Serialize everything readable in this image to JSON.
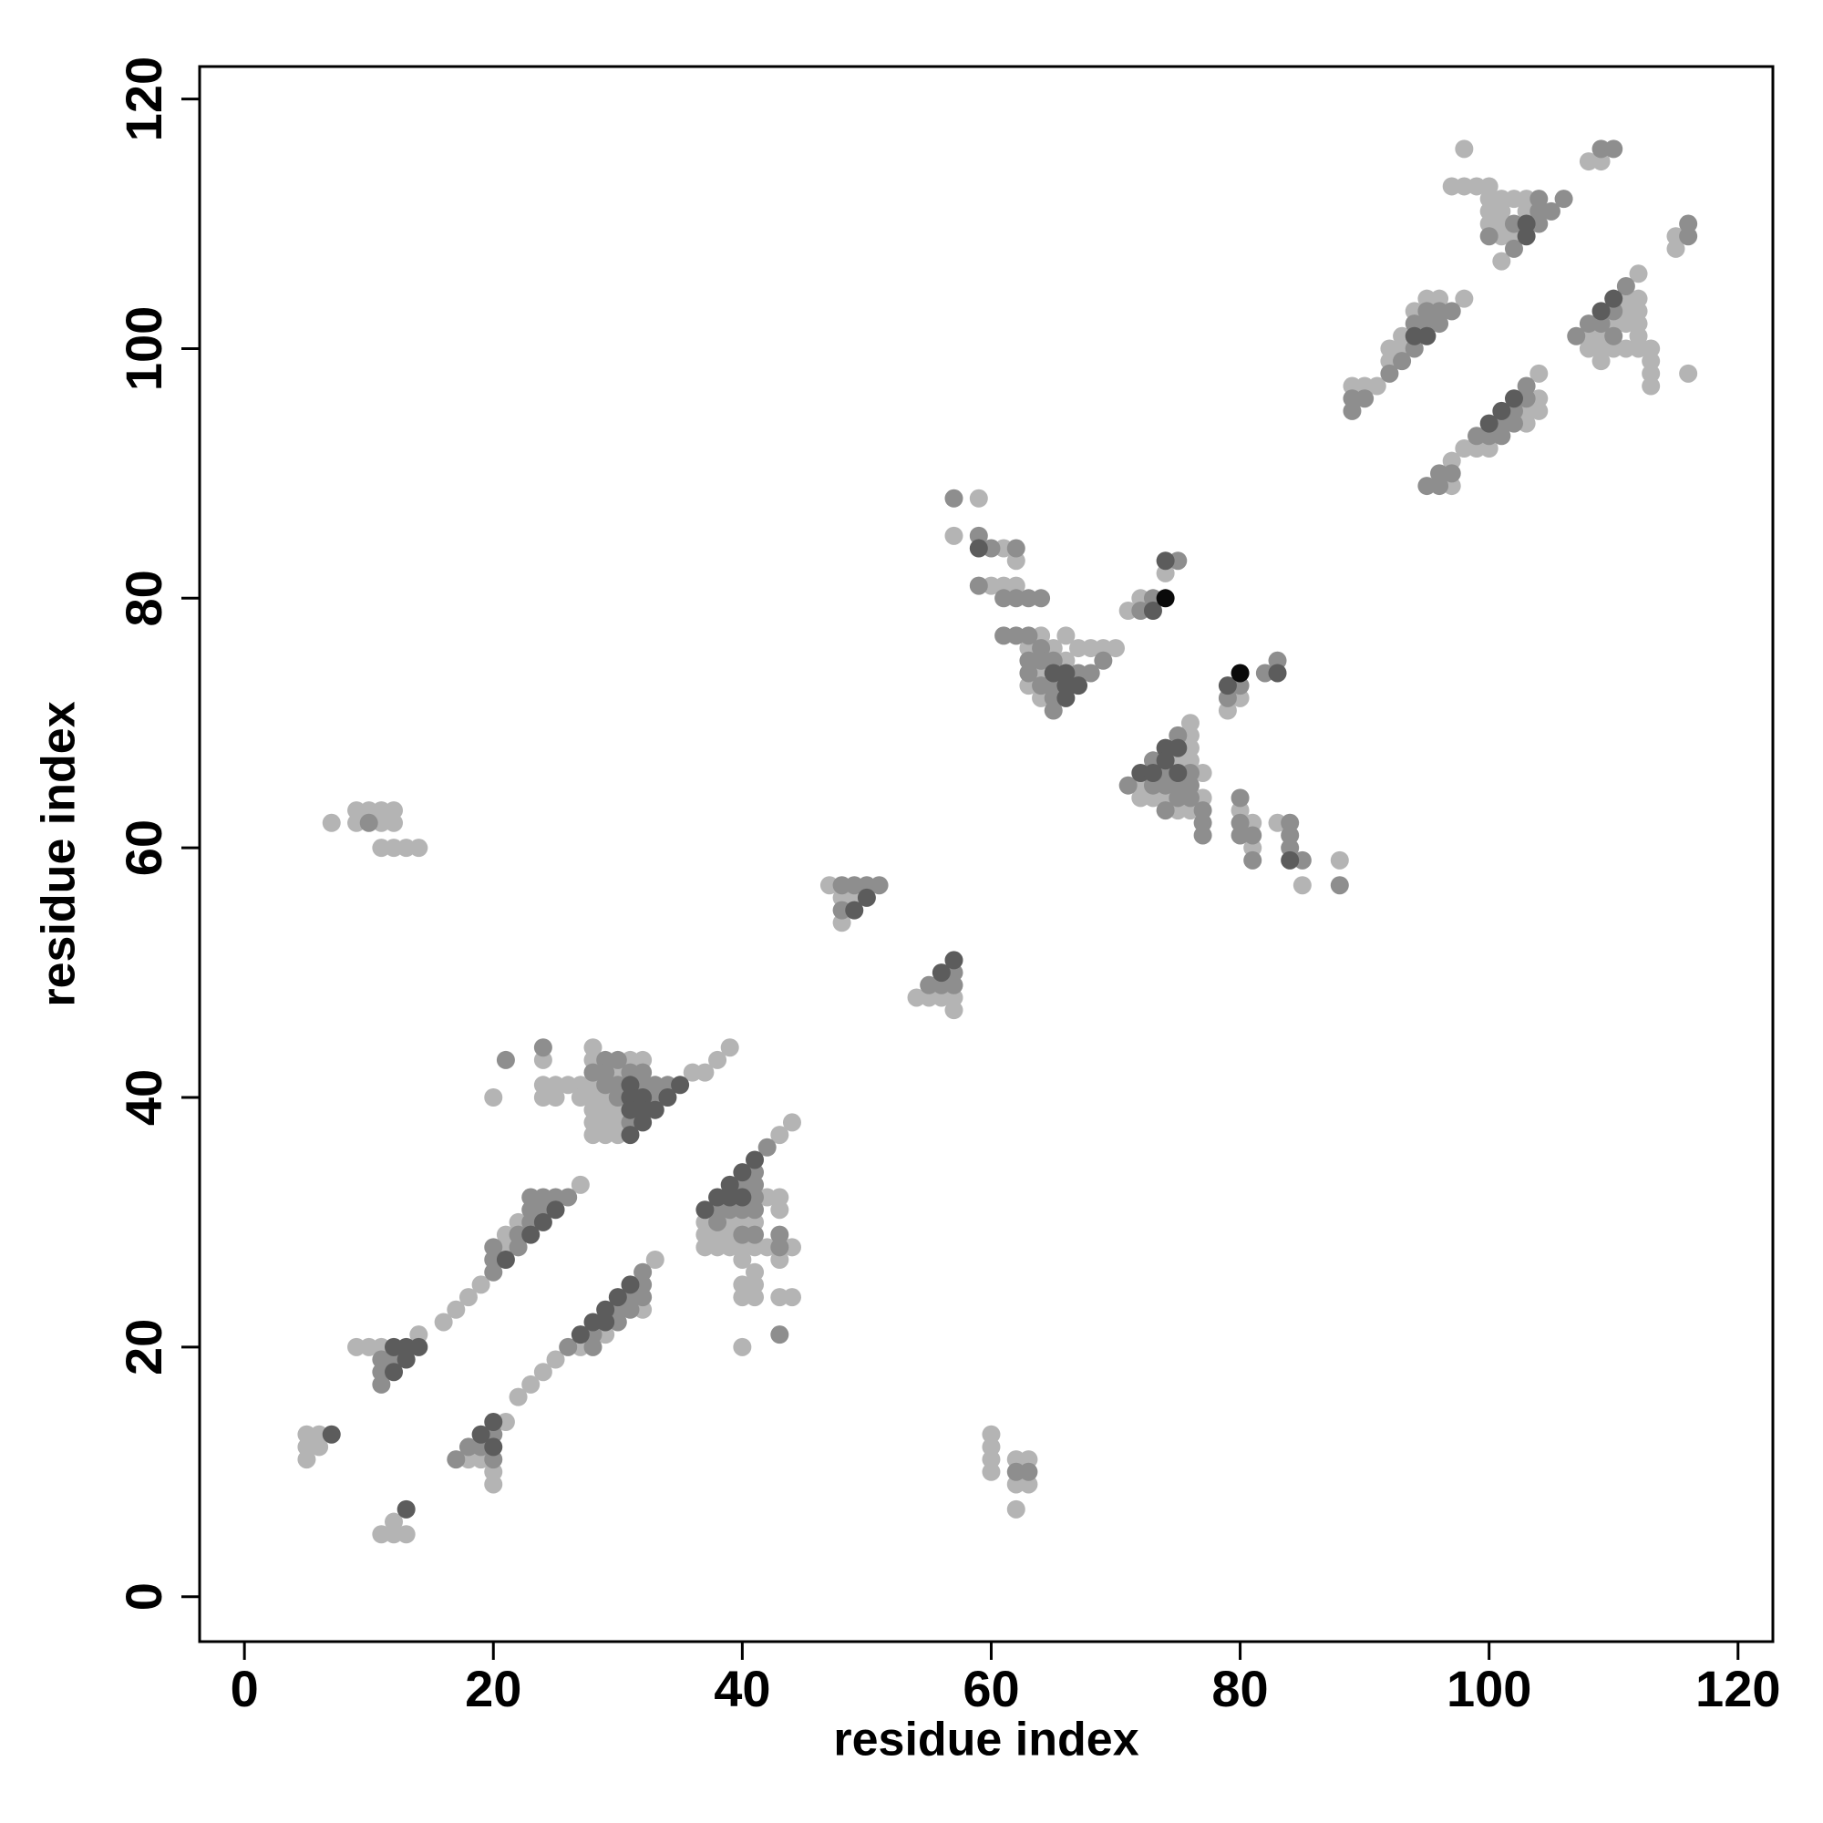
{
  "chart_data": {
    "type": "scatter",
    "x_label": "residue index",
    "y_label": "residue index",
    "xlim": [
      -3.6,
      122.8
    ],
    "ylim": [
      -3.6,
      122.6
    ],
    "xticks": [
      0,
      20,
      40,
      60,
      80,
      100,
      120
    ],
    "yticks": [
      0,
      20,
      40,
      60,
      80,
      100,
      120
    ],
    "grid": false,
    "series": [
      {
        "color": "#b4b4b4",
        "x": [
          5,
          6,
          5,
          6,
          5,
          11,
          12,
          13,
          12,
          9,
          10,
          11,
          14,
          16,
          17,
          18,
          19,
          21,
          21,
          22,
          27,
          18,
          19,
          20,
          20,
          21,
          22,
          23,
          24,
          25,
          27,
          29,
          32,
          33,
          20,
          24,
          24,
          24,
          25,
          25,
          26,
          27,
          27,
          28,
          28,
          28,
          28,
          28,
          28,
          28,
          29,
          29,
          29,
          29,
          30,
          30,
          30,
          30,
          31,
          32,
          36,
          37,
          38,
          39,
          37,
          37,
          37,
          38,
          38,
          39,
          39,
          39,
          40,
          40,
          40,
          40,
          40,
          40,
          41,
          41,
          41,
          41,
          41,
          42,
          42,
          43,
          43,
          43,
          43,
          43,
          44,
          44,
          44,
          7,
          9,
          10,
          11,
          12,
          9,
          11,
          12,
          11,
          12,
          13,
          14,
          47,
          48,
          49,
          48,
          54,
          55,
          56,
          57,
          57,
          60,
          60,
          60,
          60,
          62,
          63,
          62,
          63,
          62,
          59,
          57,
          61,
          62,
          60,
          61,
          62,
          64,
          63,
          65,
          66,
          66,
          67,
          68,
          69,
          70,
          64,
          63,
          64,
          71,
          72,
          74,
          79,
          80,
          72,
          72,
          73,
          74,
          75,
          75,
          76,
          76,
          76,
          76,
          76,
          77,
          77,
          80,
          81,
          81,
          83,
          85,
          88,
          97,
          97,
          98,
          99,
          100,
          103,
          103,
          104,
          104,
          104,
          89,
          90,
          91,
          92,
          92,
          93,
          93,
          94,
          95,
          96,
          98,
          98,
          97,
          98,
          99,
          100,
          100,
          101,
          102,
          103,
          100,
          101,
          103,
          100,
          101,
          101,
          102,
          101,
          108,
          108,
          109,
          109,
          109,
          110,
          110,
          111,
          111,
          111,
          111,
          112,
          112,
          112,
          112,
          112,
          112,
          113,
          113,
          113,
          113,
          116,
          108,
          109,
          115,
          115
        ],
        "values": [
          13,
          13,
          12,
          12,
          11,
          5,
          5,
          5,
          6,
          20,
          20,
          20,
          21,
          22,
          23,
          24,
          25,
          28,
          29,
          30,
          33,
          11,
          11,
          10,
          9,
          14,
          16,
          17,
          18,
          19,
          20,
          21,
          23,
          27,
          40,
          43,
          41,
          40,
          41,
          40,
          41,
          41,
          40,
          44,
          43,
          41,
          40,
          39,
          38,
          37,
          40,
          39,
          38,
          37,
          42,
          39,
          38,
          37,
          43,
          43,
          42,
          42,
          43,
          44,
          30,
          29,
          28,
          29,
          28,
          30,
          29,
          28,
          30,
          28,
          27,
          25,
          24,
          20,
          30,
          28,
          26,
          25,
          24,
          32,
          28,
          37,
          32,
          31,
          27,
          24,
          38,
          28,
          24,
          62,
          63,
          63,
          63,
          63,
          62,
          62,
          62,
          60,
          60,
          60,
          60,
          57,
          56,
          56,
          54,
          48,
          48,
          48,
          48,
          47,
          13,
          12,
          11,
          10,
          11,
          11,
          9,
          9,
          7,
          88,
          85,
          84,
          83,
          81,
          81,
          81,
          77,
          76,
          76,
          77,
          75,
          76,
          76,
          76,
          76,
          74,
          73,
          72,
          79,
          80,
          82,
          71,
          72,
          65,
          64,
          64,
          64,
          67,
          63,
          70,
          69,
          68,
          67,
          63,
          66,
          64,
          63,
          62,
          60,
          62,
          57,
          59,
          89,
          91,
          92,
          92,
          92,
          94,
          95,
          96,
          95,
          98,
          97,
          97,
          97,
          99,
          100,
          100,
          101,
          103,
          104,
          104,
          104,
          116,
          113,
          113,
          113,
          113,
          112,
          112,
          112,
          112,
          111,
          111,
          111,
          110,
          110,
          109,
          109,
          107,
          101,
          100,
          101,
          100,
          99,
          102,
          100,
          104,
          103,
          102,
          100,
          106,
          104,
          103,
          102,
          101,
          100,
          100,
          99,
          98,
          97,
          98,
          115,
          115,
          108,
          109
        ]
      },
      {
        "color": "#8e8e8e",
        "x": [
          11,
          12,
          11,
          11,
          20,
          20,
          20,
          22,
          22,
          23,
          23,
          23,
          24,
          24,
          25,
          26,
          17,
          18,
          19,
          20,
          20,
          26,
          28,
          28,
          30,
          30,
          31,
          31,
          32,
          32,
          32,
          21,
          24,
          28,
          29,
          29,
          29,
          30,
          30,
          30,
          31,
          31,
          32,
          32,
          33,
          33,
          34,
          38,
          38,
          39,
          40,
          40,
          40,
          41,
          41,
          41,
          41,
          41,
          42,
          43,
          43,
          43,
          10,
          48,
          49,
          50,
          51,
          48,
          55,
          56,
          57,
          57,
          62,
          63,
          57,
          59,
          60,
          62,
          59,
          61,
          62,
          63,
          64,
          61,
          62,
          63,
          64,
          63,
          64,
          65,
          63,
          67,
          68,
          69,
          64,
          65,
          65,
          65,
          72,
          73,
          75,
          79,
          80,
          82,
          83,
          71,
          73,
          73,
          74,
          74,
          74,
          75,
          75,
          75,
          76,
          76,
          76,
          77,
          77,
          77,
          80,
          80,
          80,
          81,
          81,
          84,
          84,
          84,
          85,
          88,
          95,
          96,
          96,
          97,
          99,
          100,
          101,
          101,
          102,
          102,
          103,
          103,
          89,
          90,
          89,
          92,
          93,
          94,
          94,
          95,
          95,
          96,
          96,
          97,
          104,
          106,
          104,
          105,
          102,
          104,
          100,
          102,
          107,
          108,
          109,
          110,
          110,
          111,
          109,
          110,
          116,
          116
        ],
        "values": [
          19,
          19,
          18,
          17,
          26,
          27,
          28,
          28,
          29,
          30,
          31,
          32,
          31,
          32,
          32,
          32,
          11,
          12,
          12,
          11,
          13,
          20,
          20,
          21,
          22,
          23,
          23,
          24,
          24,
          25,
          26,
          43,
          44,
          42,
          43,
          42,
          41,
          43,
          41,
          40,
          42,
          38,
          42,
          41,
          41,
          40,
          41,
          31,
          30,
          31,
          33,
          31,
          29,
          34,
          33,
          32,
          31,
          29,
          36,
          29,
          28,
          21,
          62,
          57,
          57,
          57,
          57,
          55,
          49,
          49,
          50,
          49,
          10,
          10,
          88,
          85,
          84,
          84,
          81,
          80,
          80,
          80,
          80,
          77,
          77,
          77,
          76,
          75,
          75,
          75,
          74,
          74,
          74,
          75,
          73,
          73,
          72,
          71,
          79,
          80,
          83,
          72,
          73,
          74,
          75,
          65,
          65,
          67,
          66,
          65,
          63,
          69,
          65,
          64,
          66,
          65,
          64,
          63,
          62,
          61,
          64,
          62,
          61,
          61,
          59,
          62,
          61,
          60,
          59,
          57,
          89,
          89,
          90,
          90,
          93,
          93,
          93,
          94,
          94,
          95,
          96,
          97,
          96,
          96,
          95,
          98,
          99,
          100,
          102,
          102,
          103,
          102,
          103,
          103,
          112,
          112,
          111,
          111,
          110,
          110,
          109,
          108,
          101,
          102,
          102,
          103,
          101,
          105,
          116,
          116,
          109,
          110
        ]
      },
      {
        "color": "#5c5c5c",
        "x": [
          7,
          13,
          12,
          13,
          14,
          13,
          12,
          21,
          23,
          24,
          25,
          19,
          20,
          20,
          27,
          28,
          29,
          29,
          30,
          31,
          31,
          31,
          31,
          31,
          32,
          32,
          32,
          33,
          34,
          35,
          37,
          38,
          39,
          39,
          40,
          40,
          41,
          50,
          49,
          56,
          57,
          59,
          65,
          66,
          66,
          67,
          66,
          73,
          74,
          79,
          83,
          72,
          73,
          74,
          74,
          75,
          75,
          84,
          100,
          101,
          102,
          94,
          95,
          103,
          103,
          109,
          110
        ],
        "values": [
          13,
          7,
          20,
          20,
          20,
          19,
          18,
          27,
          29,
          30,
          31,
          13,
          12,
          14,
          21,
          22,
          22,
          23,
          24,
          25,
          41,
          40,
          39,
          37,
          40,
          39,
          38,
          39,
          40,
          41,
          31,
          32,
          33,
          32,
          34,
          32,
          35,
          56,
          55,
          50,
          51,
          84,
          74,
          74,
          73,
          73,
          72,
          79,
          83,
          73,
          74,
          66,
          66,
          68,
          67,
          68,
          66,
          59,
          94,
          95,
          96,
          101,
          101,
          110,
          109,
          103,
          104
        ]
      },
      {
        "color": "#0a0a0a",
        "x": [
          74,
          80
        ],
        "values": [
          80,
          74
        ]
      }
    ]
  }
}
